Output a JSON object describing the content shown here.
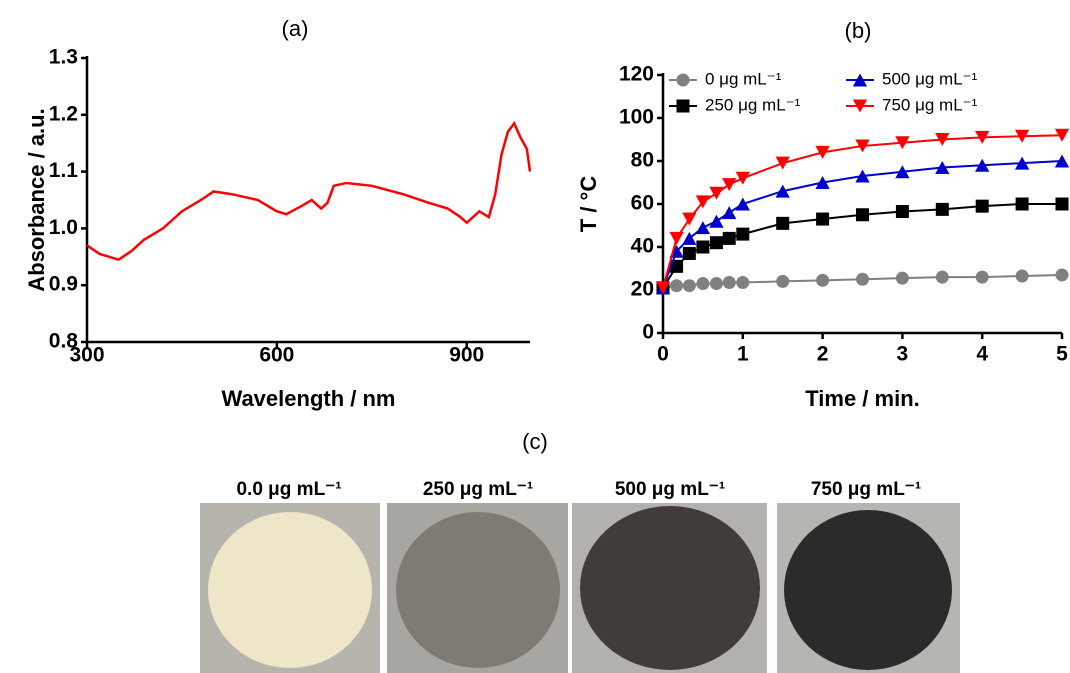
{
  "chart_data": [
    {
      "type": "line",
      "title": "(a)",
      "x_label": "Wavelength / nm",
      "y_label": "Absorbance / a.u.",
      "x": [
        300,
        320,
        350,
        370,
        390,
        420,
        450,
        480,
        500,
        530,
        570,
        600,
        615,
        640,
        655,
        670,
        680,
        690,
        710,
        750,
        800,
        840,
        870,
        890,
        900,
        920,
        935,
        945,
        955,
        965,
        975,
        985,
        995,
        1000
      ],
      "values": [
        0.97,
        0.955,
        0.945,
        0.96,
        0.98,
        1.0,
        1.03,
        1.05,
        1.065,
        1.06,
        1.05,
        1.03,
        1.025,
        1.04,
        1.05,
        1.035,
        1.045,
        1.075,
        1.08,
        1.075,
        1.06,
        1.045,
        1.035,
        1.02,
        1.01,
        1.03,
        1.02,
        1.06,
        1.13,
        1.17,
        1.185,
        1.16,
        1.14,
        1.1
      ],
      "color": "#ff0000",
      "xlim": [
        300,
        1000
      ],
      "xticks": [
        300,
        600,
        900
      ],
      "ylim": [
        0.8,
        1.3
      ],
      "yticks": [
        0.8,
        0.9,
        {
          "value": 1,
          "label": "1.0"
        },
        1.1,
        1.2,
        1.3
      ]
    },
    {
      "type": "scatter",
      "title": "(b)",
      "x_label": "Time / min.",
      "y_label": "T / °C",
      "x": [
        0,
        0.17,
        0.33,
        0.5,
        0.67,
        0.83,
        1,
        1.5,
        2,
        2.5,
        3,
        3.5,
        4,
        4.5,
        5
      ],
      "series": [
        {
          "name": "0 μg mL⁻¹",
          "color": "#808080",
          "marker": "circle",
          "values": [
            21,
            22,
            22,
            23,
            23,
            23.5,
            23.5,
            24,
            24.5,
            25,
            25.5,
            26,
            26,
            26.5,
            27
          ]
        },
        {
          "name": "250 μg mL⁻¹",
          "color": "#000000",
          "marker": "square",
          "values": [
            21,
            31,
            37,
            40,
            42,
            44,
            46,
            51,
            53,
            55,
            56.5,
            57.5,
            59,
            60,
            60
          ]
        },
        {
          "name": "500 μg mL⁻¹",
          "color": "#0000cc",
          "marker": "triangle-up",
          "values": [
            21,
            38,
            44,
            49,
            52,
            56,
            60,
            66,
            70,
            73,
            75,
            77,
            78,
            79,
            80
          ]
        },
        {
          "name": "750 μg mL⁻¹",
          "color": "#ff0000",
          "marker": "triangle-down",
          "values": [
            21,
            44,
            53,
            61,
            65,
            69,
            72,
            79,
            84,
            87,
            88.5,
            90,
            91,
            91.5,
            92
          ]
        }
      ],
      "xlim": [
        0,
        5
      ],
      "xticks": [
        0,
        1,
        2,
        3,
        4,
        5
      ],
      "ylim": [
        0,
        120
      ],
      "yticks": [
        0,
        20,
        40,
        60,
        80,
        100,
        120
      ]
    }
  ],
  "panel_c": {
    "title": "(c)",
    "labels": [
      "0.0 μg mL⁻¹",
      "250 μg mL⁻¹",
      "500 μg mL⁻¹",
      "750 μg mL⁻¹"
    ]
  }
}
